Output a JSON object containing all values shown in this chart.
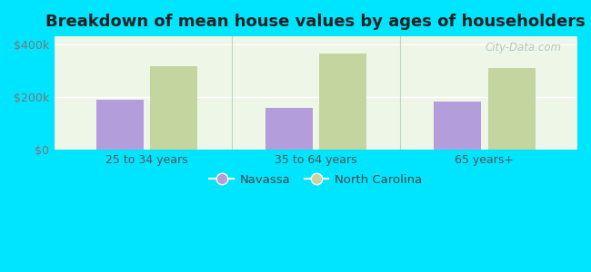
{
  "title": "Breakdown of mean house values by ages of householders",
  "categories": [
    "25 to 34 years",
    "35 to 64 years",
    "65 years+"
  ],
  "navassa_values": [
    190000,
    158000,
    183000
  ],
  "nc_values": [
    315000,
    365000,
    308000
  ],
  "navassa_color": "#b39ddb",
  "nc_color": "#c5d5a0",
  "background_color": "#00e5ff",
  "yticks": [
    0,
    200000,
    400000
  ],
  "ytick_labels": [
    "$0",
    "$200k",
    "$400k"
  ],
  "ylim": [
    0,
    430000
  ],
  "bar_width": 0.28,
  "title_fontsize": 13,
  "legend_labels": [
    "Navassa",
    "North Carolina"
  ],
  "watermark": "City-Data.com"
}
